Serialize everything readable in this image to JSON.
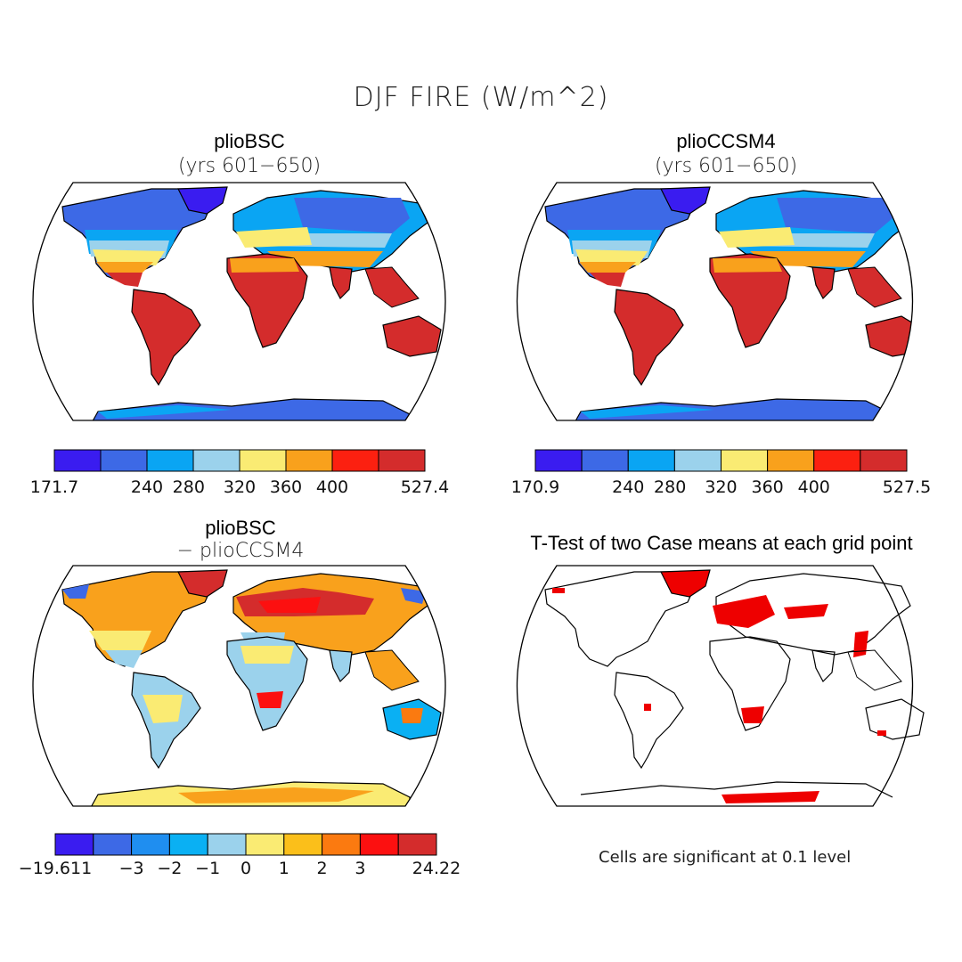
{
  "title": "DJF FIRE (W/m^2)",
  "panels": [
    {
      "title": "plioBSC",
      "subtitle": "(yrs 601−650)"
    },
    {
      "title": "plioCCSM4",
      "subtitle": "(yrs 601−650)"
    },
    {
      "title": "plioBSC",
      "subtitle": "− plioCCSM4"
    },
    {
      "title": "T-Test of two Case means at each grid point",
      "subtitle": ""
    }
  ],
  "colorbars": [
    {
      "colors": [
        "#3a1cf0",
        "#3d69e6",
        "#0aa5f3",
        "#9bd2ec",
        "#faeb73",
        "#f9a11c",
        "#fc2010",
        "#d42c2c"
      ],
      "ticks": [
        "171.7",
        "240",
        "280",
        "320",
        "360",
        "400",
        "527.4"
      ],
      "tick_positions": [
        0,
        2,
        2.9,
        4,
        5,
        6,
        8
      ]
    },
    {
      "colors": [
        "#3a1cf0",
        "#3d69e6",
        "#0aa5f3",
        "#9bd2ec",
        "#faeb73",
        "#f9a11c",
        "#fc2010",
        "#d42c2c"
      ],
      "ticks": [
        "170.9",
        "240",
        "280",
        "320",
        "360",
        "400",
        "527.5"
      ],
      "tick_positions": [
        0,
        2,
        2.9,
        4,
        5,
        6,
        8
      ]
    },
    {
      "colors": [
        "#3a1cf0",
        "#3d69e6",
        "#1f8ef0",
        "#0ab0f3",
        "#9bd2ec",
        "#faeb73",
        "#fbbf1a",
        "#fb7a10",
        "#fc1010",
        "#d42c2c"
      ],
      "ticks": [
        "−19.611",
        "−3",
        "−2",
        "−1",
        "0",
        "1",
        "2",
        "3",
        "24.22"
      ],
      "tick_positions": [
        0,
        2,
        3,
        4,
        5,
        6,
        7,
        8,
        10
      ]
    }
  ],
  "note": "Cells are significant at 0.1 level",
  "colors": {
    "ocean": "#ffffff",
    "coast": "#000000",
    "significant": "#ee0000"
  }
}
